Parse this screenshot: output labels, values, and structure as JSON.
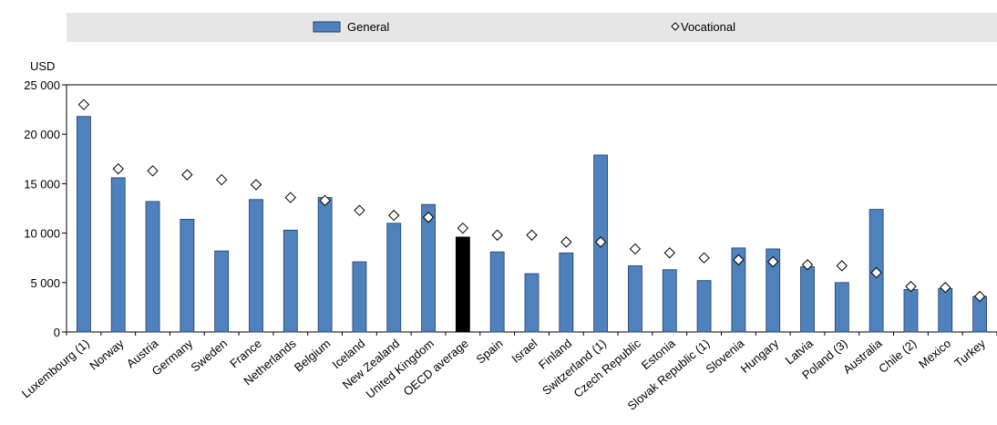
{
  "chart_data": {
    "type": "bar",
    "unit_label": "USD",
    "legend": {
      "placement": "top",
      "entries": [
        {
          "name": "General",
          "marker": "bar",
          "color": "#4f81bd"
        },
        {
          "name": "Vocational",
          "marker": "diamond",
          "color": "#ffffff"
        }
      ]
    },
    "ylim": [
      0,
      25000
    ],
    "yticks": [
      0,
      5000,
      10000,
      15000,
      20000,
      25000
    ],
    "ytick_labels": [
      "0",
      "5 000",
      "10 000",
      "15 000",
      "20 000",
      "25 000"
    ],
    "categories": [
      "Luxembourg (1)",
      "Norway",
      "Austria",
      "Germany",
      "Sweden",
      "France",
      "Netherlands",
      "Belgium",
      "Iceland",
      "New Zealand",
      "United Kingdom",
      "OECD average",
      "Spain",
      "Israel",
      "Finland",
      "Switzerland (1)",
      "Czech Republic",
      "Estonia",
      "Slovak Republic (1)",
      "Slovenia",
      "Hungary",
      "Latvia",
      "Poland (3)",
      "Australia",
      "Chile (2)",
      "Mexico",
      "Turkey"
    ],
    "series": [
      {
        "name": "General",
        "values": [
          21800,
          15600,
          13200,
          11400,
          8200,
          13400,
          10300,
          13600,
          7100,
          11000,
          12900,
          9600,
          8100,
          5900,
          8000,
          17900,
          6700,
          6300,
          5200,
          8500,
          8400,
          6600,
          5000,
          12400,
          4300,
          4400,
          3600
        ]
      },
      {
        "name": "Vocational",
        "values": [
          23000,
          16500,
          16300,
          15900,
          15400,
          14900,
          13600,
          13300,
          12300,
          11800,
          11600,
          10500,
          9800,
          9800,
          9100,
          9100,
          8400,
          8000,
          7500,
          7300,
          7100,
          6800,
          6700,
          6000,
          4600,
          4500,
          3600
        ]
      }
    ],
    "highlight": {
      "category": "OECD average",
      "color": "#000000"
    },
    "colors": {
      "bar": "#4f81bd",
      "bar_stroke": "#1f3f6e",
      "legend_bg": "#e6e6e6"
    },
    "grid": false
  }
}
